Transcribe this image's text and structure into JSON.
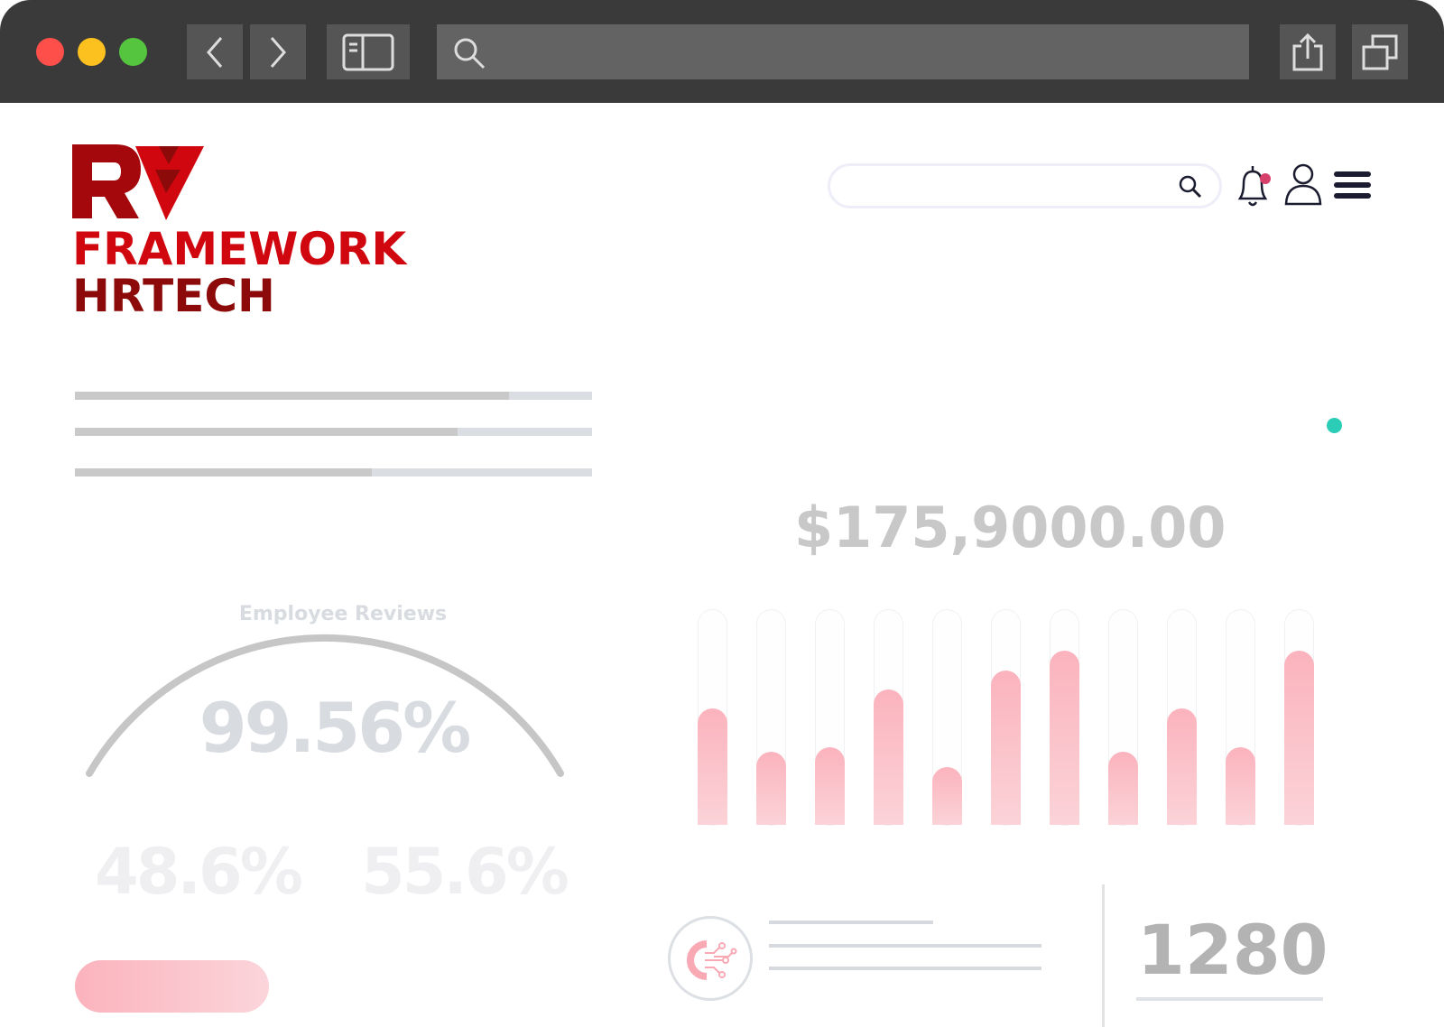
{
  "browser": {
    "window_controls": [
      "close",
      "minimize",
      "maximize"
    ],
    "colors": {
      "close": "#fe4f4a",
      "minimize": "#fcc11e",
      "maximize": "#55c53f"
    },
    "icons": [
      "back-icon",
      "forward-icon",
      "sidebar-icon",
      "search-icon",
      "share-icon",
      "tabs-icon"
    ]
  },
  "logo": {
    "mark": "R7",
    "line1": "FRAMEWORK",
    "line2": "HRTECH",
    "colors": {
      "primary": "#d0070f",
      "dark": "#8c0a0a"
    }
  },
  "header": {
    "search_placeholder": "",
    "notification_dot_color": "#d6416b"
  },
  "progress_bars": [
    0.84,
    0.74,
    0.575
  ],
  "status_dot_color": "#2ccdb7",
  "revenue": {
    "amount": "$175,9000.00"
  },
  "reviews": {
    "title": "Employee Reviews",
    "score": "99.56%",
    "left_stat": "48.6%",
    "right_stat": "55.6%"
  },
  "chart_data": {
    "type": "bar",
    "values_percent": [
      54,
      34,
      36,
      63,
      27,
      72,
      81,
      34,
      54,
      36,
      81
    ],
    "color": "#fbb3bd"
  },
  "summary": {
    "count": "1280",
    "icon": "gear-circuit-icon"
  }
}
